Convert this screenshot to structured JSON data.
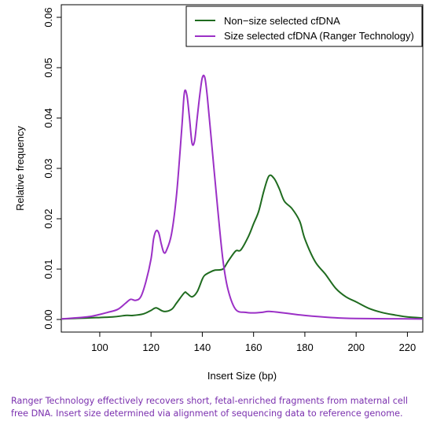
{
  "chart_data": {
    "type": "line",
    "title": "",
    "xlabel": "Insert Size (bp)",
    "ylabel": "Relative frequency",
    "xlim": [
      85,
      226
    ],
    "ylim": [
      -0.0025,
      0.0625
    ],
    "xticks": [
      100,
      120,
      140,
      160,
      180,
      200,
      220
    ],
    "yticks": [
      0.0,
      0.01,
      0.02,
      0.03,
      0.04,
      0.05,
      0.06
    ],
    "ytick_labels": [
      "0.00",
      "0.01",
      "0.02",
      "0.03",
      "0.04",
      "0.05",
      "0.06"
    ],
    "grid": false,
    "legend_position": "top-right",
    "series": [
      {
        "name": "Non−size selected cfDNA",
        "color": "#1f6b1f",
        "x": [
          85,
          95,
          105,
          110,
          113,
          117,
          120,
          122,
          125,
          128,
          130,
          133,
          134,
          136,
          138,
          140,
          141,
          143,
          145,
          148,
          150,
          153,
          155,
          158,
          160,
          162,
          164,
          166,
          168,
          170,
          172,
          175,
          178,
          180,
          184,
          188,
          192,
          196,
          200,
          205,
          210,
          215,
          220,
          226
        ],
        "y": [
          0.0001,
          0.0003,
          0.0005,
          0.0008,
          0.0008,
          0.0011,
          0.0018,
          0.0023,
          0.0016,
          0.002,
          0.0033,
          0.0053,
          0.0052,
          0.0045,
          0.0055,
          0.008,
          0.0088,
          0.0094,
          0.0098,
          0.01,
          0.0115,
          0.0136,
          0.0138,
          0.0165,
          0.019,
          0.0215,
          0.0255,
          0.0285,
          0.028,
          0.026,
          0.0235,
          0.022,
          0.0195,
          0.016,
          0.0115,
          0.009,
          0.0062,
          0.0045,
          0.0035,
          0.0022,
          0.0014,
          0.0009,
          0.0005,
          0.0003
        ]
      },
      {
        "name": "Size selected cfDNA (Ranger Technology)",
        "color": "#9b30c6",
        "x": [
          85,
          95,
          100,
          103,
          107,
          110,
          112,
          114,
          116,
          118,
          120,
          121,
          122,
          123,
          124,
          125,
          126,
          128,
          130,
          132,
          133,
          134,
          135,
          136,
          137,
          138,
          139,
          140,
          141,
          142,
          144,
          146,
          148,
          150,
          153,
          157,
          160,
          163,
          166,
          170,
          175,
          180,
          190,
          200,
          226
        ],
        "y": [
          0.0001,
          0.0005,
          0.001,
          0.0014,
          0.002,
          0.0032,
          0.004,
          0.0038,
          0.0045,
          0.0075,
          0.012,
          0.016,
          0.0176,
          0.0172,
          0.015,
          0.0133,
          0.0137,
          0.017,
          0.025,
          0.038,
          0.045,
          0.0445,
          0.04,
          0.035,
          0.0355,
          0.04,
          0.0445,
          0.048,
          0.048,
          0.044,
          0.033,
          0.022,
          0.012,
          0.006,
          0.002,
          0.0014,
          0.0013,
          0.0014,
          0.0016,
          0.0014,
          0.0011,
          0.0008,
          0.0004,
          0.0002,
          0.0001
        ]
      }
    ]
  },
  "caption": "Ranger Technology effectively recovers short, fetal-enriched fragments from maternal cell free DNA. Insert size determined via alignment  of sequencing data to reference genome."
}
